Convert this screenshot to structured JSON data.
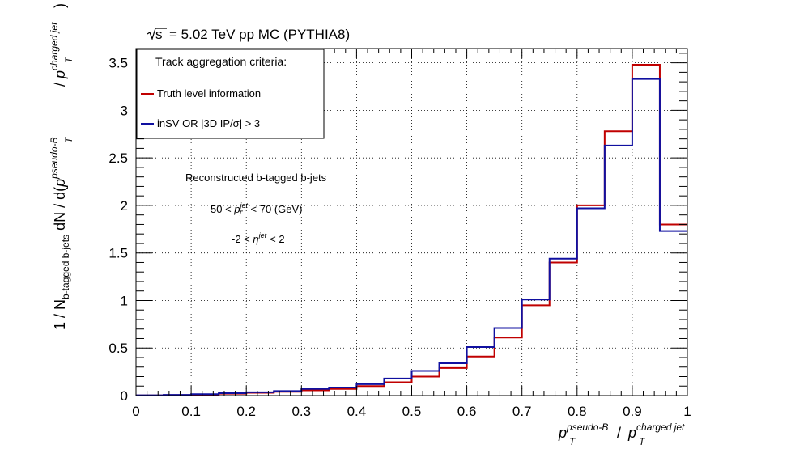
{
  "chart_data": {
    "type": "line",
    "title_prefix": "s",
    "title": "= 5.02 TeV pp MC (PYTHIA8)",
    "xlabel": {
      "main": "p",
      "sup": "pseudo-B",
      "sub": "T",
      "sep": "/",
      "main2": "p",
      "sup2": "charged jet",
      "sub2": "T"
    },
    "ylabel": {
      "prefix": "1 / N",
      "prefix_sub": "b-tagged b-jets",
      "mid": " dN / d(",
      "main": "p",
      "sup": "pseudo-B",
      "sub": "T",
      "sep": " / ",
      "main2": "p",
      "sup2": "charged jet",
      "sub2": "T",
      "close": ")"
    },
    "xlim": [
      0,
      1
    ],
    "ylim": [
      0,
      3.65
    ],
    "x_ticks": [
      "0",
      "0.1",
      "0.2",
      "0.3",
      "0.4",
      "0.5",
      "0.6",
      "0.7",
      "0.8",
      "0.9",
      "1"
    ],
    "y_ticks": [
      "0",
      "0.5",
      "1",
      "1.5",
      "2",
      "2.5",
      "3",
      "3.5"
    ],
    "grid": true,
    "legend": {
      "header": "Track aggregation criteria:",
      "position": "top-left"
    },
    "annotations": {
      "line1": "Reconstructed b-tagged b-jets",
      "line2_lo": "50 <",
      "line2_var": "p",
      "line2_sup": "jet",
      "line2_sub": "T",
      "line2_hi": "< 70 (GeV)",
      "line3_lo": "-2 <",
      "line3_var": "η",
      "line3_sup": "jet",
      "line3_hi": "< 2"
    },
    "bin_edges": [
      0,
      0.05,
      0.1,
      0.15,
      0.2,
      0.25,
      0.3,
      0.35,
      0.4,
      0.45,
      0.5,
      0.55,
      0.6,
      0.65,
      0.7,
      0.75,
      0.8,
      0.85,
      0.9,
      0.95,
      1.0
    ],
    "series": [
      {
        "name": "Truth level information",
        "color": "#c00000",
        "values": [
          0.002,
          0.005,
          0.012,
          0.02,
          0.03,
          0.04,
          0.055,
          0.07,
          0.1,
          0.14,
          0.2,
          0.29,
          0.41,
          0.61,
          0.95,
          1.4,
          2.0,
          2.78,
          3.48,
          1.8
        ]
      },
      {
        "name": "inSV OR |3D IP/σ| > 3",
        "color": "#1010a0",
        "values": [
          0.003,
          0.007,
          0.015,
          0.025,
          0.035,
          0.048,
          0.07,
          0.085,
          0.12,
          0.18,
          0.26,
          0.34,
          0.51,
          0.71,
          1.01,
          1.44,
          1.97,
          2.63,
          3.33,
          1.73
        ]
      }
    ]
  }
}
